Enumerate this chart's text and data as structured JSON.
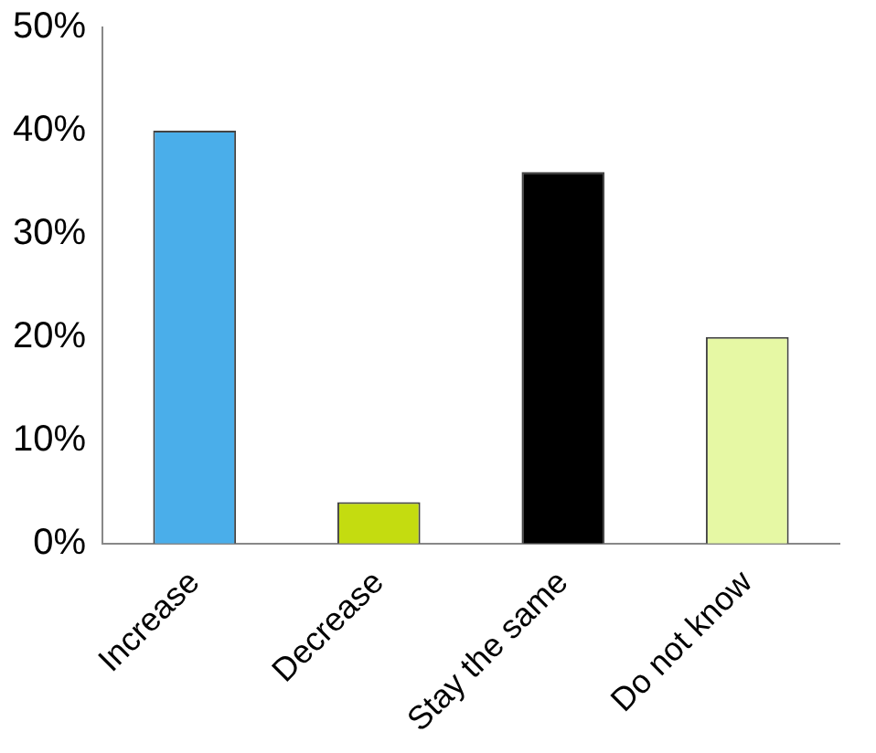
{
  "chart_data": {
    "type": "bar",
    "categories": [
      "Increase",
      "Decrease",
      "Stay the same",
      "Do not know"
    ],
    "values": [
      40,
      4,
      36,
      20
    ],
    "colors": [
      "#4aaeea",
      "#c4dc10",
      "#000000",
      "#e6f8a4"
    ],
    "ylim": [
      0,
      50
    ],
    "yticks": [
      {
        "value": 0,
        "label": "0%"
      },
      {
        "value": 10,
        "label": "10%"
      },
      {
        "value": 20,
        "label": "20%"
      },
      {
        "value": 30,
        "label": "30%"
      },
      {
        "value": 40,
        "label": "40%"
      },
      {
        "value": 50,
        "label": "50%"
      }
    ],
    "grid": false
  }
}
